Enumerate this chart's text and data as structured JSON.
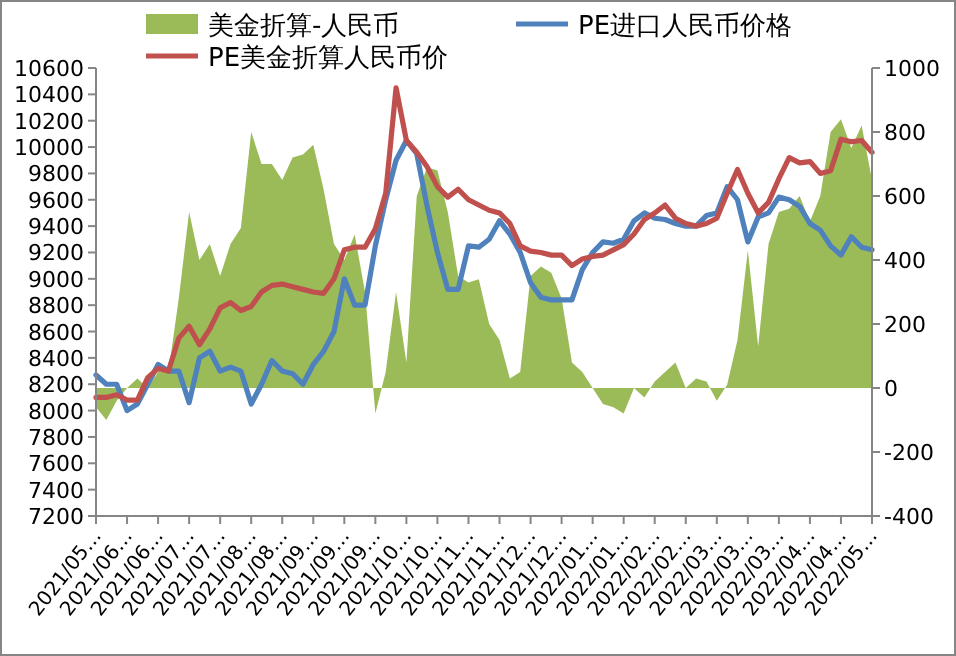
{
  "chart_data": {
    "type": "line",
    "legend": "top",
    "categories": [
      "2021/05…",
      null,
      null,
      "2021/06…",
      null,
      null,
      "2021/06…",
      null,
      null,
      "2021/07…",
      null,
      null,
      "2021/07…",
      null,
      null,
      "2021/08…",
      null,
      null,
      "2021/08…",
      null,
      null,
      "2021/09…",
      null,
      null,
      "2021/09…",
      null,
      null,
      "2021/09…",
      null,
      null,
      "2021/10…",
      null,
      null,
      "2021/10…",
      null,
      null,
      "2021/11…",
      null,
      null,
      "2021/11…",
      null,
      null,
      "2021/12…",
      null,
      null,
      "2021/12…",
      null,
      null,
      "2022/01…",
      null,
      null,
      "2022/01…",
      null,
      null,
      "2022/02…",
      null,
      null,
      "2022/02…",
      null,
      null,
      "2022/03…",
      null,
      null,
      "2022/03…",
      null,
      null,
      "2022/03…",
      null,
      null,
      "2022/04…",
      null,
      null,
      "2022/04…",
      null,
      null,
      "2022/05…"
    ],
    "ylim": [
      7200,
      10600
    ],
    "yticks": [
      7200,
      7400,
      7600,
      7800,
      8000,
      8200,
      8400,
      8600,
      8800,
      9000,
      9200,
      9400,
      9600,
      9800,
      10000,
      10200,
      10400,
      10600
    ],
    "y2lim": [
      -400,
      1000
    ],
    "y2ticks": [
      -400,
      -200,
      0,
      200,
      400,
      600,
      800,
      1000
    ],
    "series": [
      {
        "name": "美金折算-人民币",
        "type": "area",
        "axis": "y2",
        "color": "#9bbb59",
        "values": [
          -60,
          -100,
          -40,
          0,
          30,
          0,
          50,
          50,
          280,
          550,
          400,
          450,
          350,
          450,
          500,
          800,
          700,
          700,
          650,
          720,
          730,
          760,
          620,
          450,
          400,
          480,
          300,
          -80,
          50,
          300,
          80,
          600,
          690,
          680,
          550,
          350,
          330,
          340,
          200,
          150,
          30,
          50,
          350,
          380,
          360,
          280,
          80,
          50,
          0,
          -50,
          -60,
          -80,
          0,
          -30,
          20,
          50,
          80,
          0,
          30,
          20,
          -40,
          10,
          150,
          430,
          130,
          450,
          550,
          560,
          600,
          520,
          600,
          800,
          840,
          750,
          820,
          650
        ]
      },
      {
        "name": "PE进口人民币价格",
        "type": "line",
        "color": "#4f81bd",
        "values": [
          8270,
          8200,
          8200,
          8000,
          8050,
          8200,
          8350,
          8300,
          8300,
          8060,
          8400,
          8450,
          8300,
          8330,
          8300,
          8050,
          8200,
          8380,
          8300,
          8280,
          8200,
          8350,
          8450,
          8600,
          9000,
          8800,
          8800,
          9250,
          9600,
          9900,
          10050,
          9950,
          9550,
          9200,
          8920,
          8920,
          9250,
          9240,
          9300,
          9440,
          9340,
          9200,
          8970,
          8860,
          8840,
          8840,
          8840,
          9070,
          9200,
          9280,
          9270,
          9300,
          9440,
          9500,
          9460,
          9450,
          9420,
          9400,
          9400,
          9480,
          9500,
          9700,
          9600,
          9280,
          9470,
          9500,
          9620,
          9600,
          9550,
          9420,
          9370,
          9250,
          9180,
          9320,
          9240,
          9220
        ]
      },
      {
        "name": "PE美金折算人民币价",
        "type": "line",
        "color": "#c0504d",
        "values": [
          8100,
          8100,
          8120,
          8080,
          8080,
          8250,
          8320,
          8300,
          8550,
          8640,
          8500,
          8620,
          8780,
          8820,
          8760,
          8790,
          8900,
          8950,
          8960,
          8940,
          8920,
          8900,
          8890,
          9000,
          9220,
          9240,
          9240,
          9380,
          9650,
          10450,
          10050,
          9960,
          9850,
          9700,
          9620,
          9680,
          9600,
          9560,
          9520,
          9500,
          9420,
          9250,
          9210,
          9200,
          9180,
          9180,
          9100,
          9150,
          9170,
          9180,
          9220,
          9260,
          9340,
          9450,
          9500,
          9560,
          9460,
          9420,
          9400,
          9420,
          9460,
          9650,
          9830,
          9650,
          9500,
          9580,
          9760,
          9920,
          9880,
          9890,
          9800,
          9820,
          10060,
          10040,
          10050,
          9960
        ]
      }
    ]
  }
}
